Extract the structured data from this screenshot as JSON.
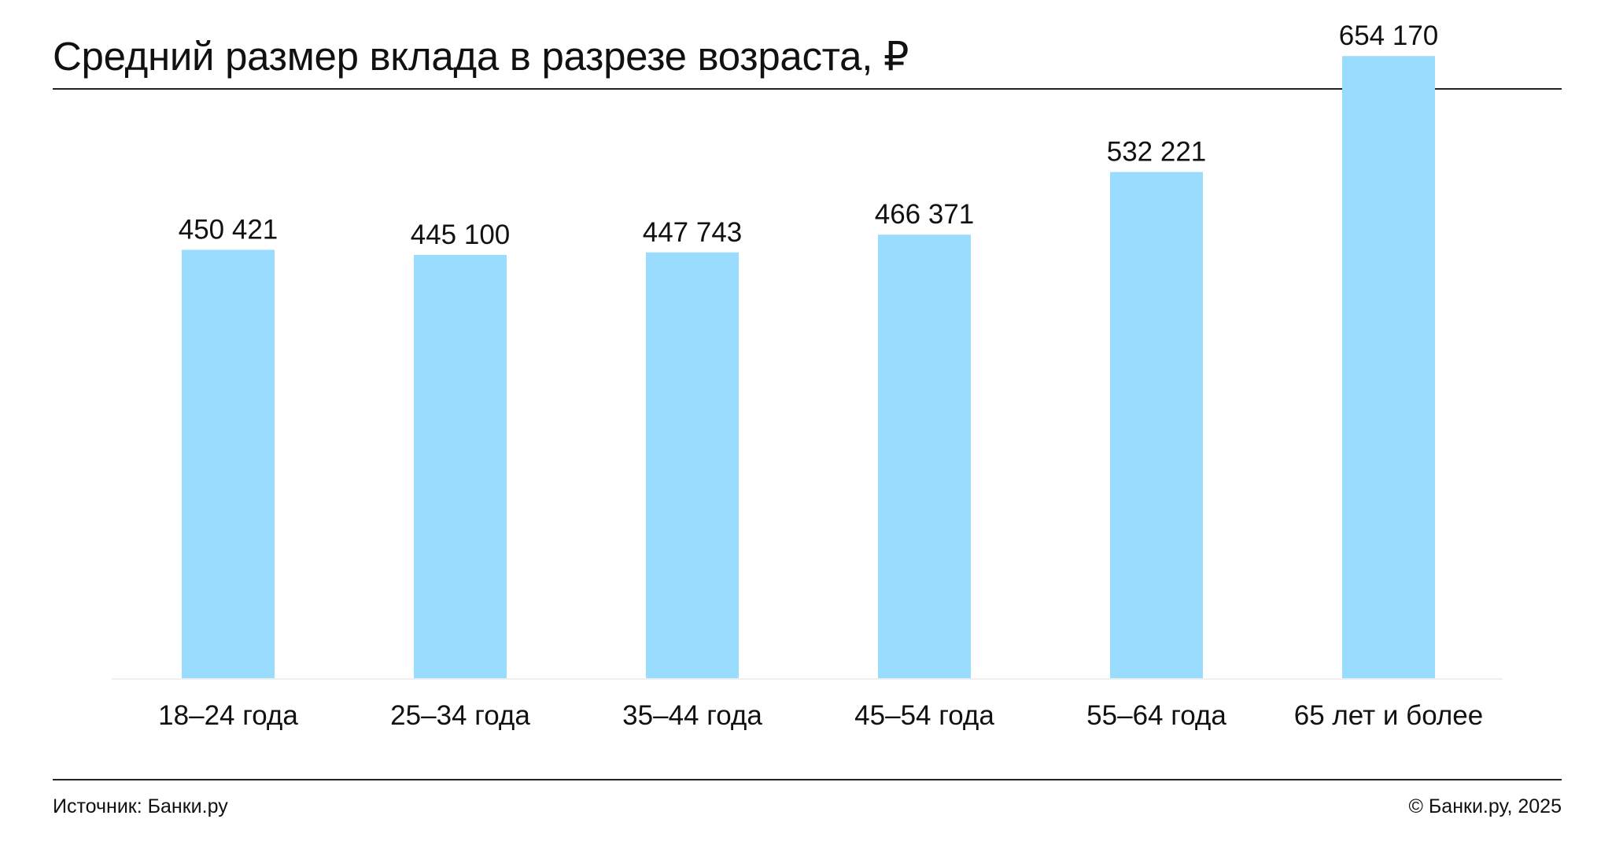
{
  "header": {
    "title": "Средний размер вклада в разрезе возраста, ₽"
  },
  "footer": {
    "source": "Источник: Банки.ру",
    "copyright": "© Банки.ру, 2025"
  },
  "colors": {
    "bar": "#99dcfd",
    "text": "#111111",
    "rule": "#222222"
  },
  "chart_data": {
    "type": "bar",
    "title": "Средний размер вклада в разрезе возраста, ₽",
    "categories": [
      "18–24 года",
      "25–34 года",
      "35–44 года",
      "45–54 года",
      "55–64 года",
      "65 лет и более"
    ],
    "values": [
      450421,
      445100,
      447743,
      466371,
      532221,
      654170
    ],
    "value_labels": [
      "450 421",
      "445 100",
      "447 743",
      "466 371",
      "532 221",
      "654 170"
    ],
    "ylim": [
      0,
      680000
    ],
    "grid": false,
    "legend": "none"
  }
}
